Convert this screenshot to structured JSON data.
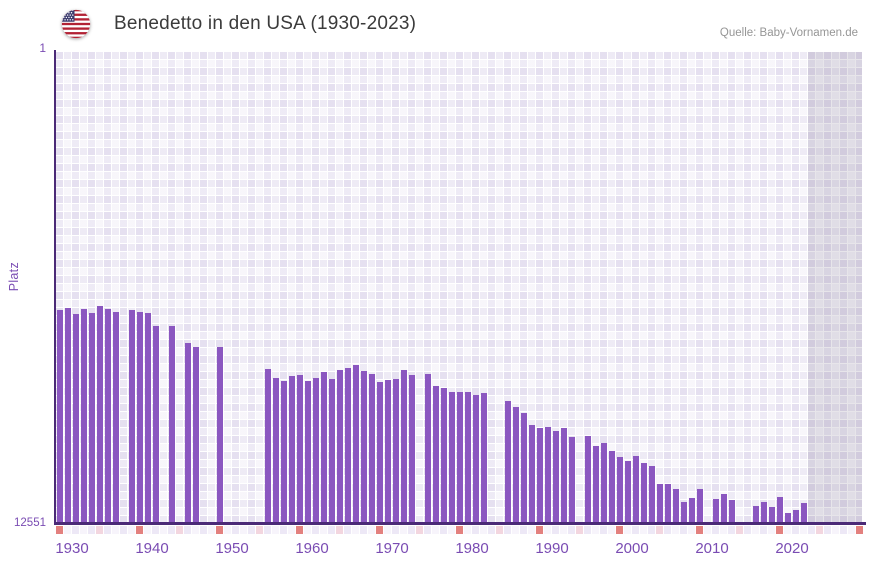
{
  "header": {
    "flag_icon": "us-flag-icon",
    "title": "Benedetto in den USA (1930-2023)",
    "source": "Quelle: Baby-Vornamen.de"
  },
  "y_axis": {
    "title": "Platz",
    "top_label": "1",
    "bottom_label": "12551"
  },
  "x_axis": {
    "tick_labels": [
      "1930",
      "1940",
      "1950",
      "1960",
      "1970",
      "1980",
      "1990",
      "2000",
      "2010",
      "2020"
    ]
  },
  "colors": {
    "bar": "#8b57c0",
    "axis_line": "#4b2a77",
    "tick_text": "#7a4cb3",
    "title_text": "#3b3b3b",
    "source_text": "#969696",
    "decade_marker": "#e3807e",
    "half_decade_marker": "#f3d6df",
    "future_band": "rgba(104,96,126,0.16)"
  },
  "chart_data": {
    "type": "bar",
    "title": "Benedetto in den USA (1930-2023)",
    "xlabel": "",
    "ylabel": "Platz",
    "y_axis_inverted": true,
    "ylim": [
      1,
      12551
    ],
    "x_range_drawn": [
      1930,
      2030
    ],
    "no_data_band": [
      2024,
      2030
    ],
    "grid": true,
    "legend": false,
    "years": [
      1930,
      1931,
      1932,
      1933,
      1934,
      1935,
      1936,
      1937,
      1938,
      1939,
      1940,
      1941,
      1942,
      1943,
      1944,
      1945,
      1946,
      1947,
      1948,
      1949,
      1950,
      1951,
      1952,
      1953,
      1954,
      1955,
      1956,
      1957,
      1958,
      1959,
      1960,
      1961,
      1962,
      1963,
      1964,
      1965,
      1966,
      1967,
      1968,
      1969,
      1970,
      1971,
      1972,
      1973,
      1974,
      1975,
      1976,
      1977,
      1978,
      1979,
      1980,
      1981,
      1982,
      1983,
      1984,
      1985,
      1986,
      1987,
      1988,
      1989,
      1990,
      1991,
      1992,
      1993,
      1994,
      1995,
      1996,
      1997,
      1998,
      1999,
      2000,
      2001,
      2002,
      2003,
      2004,
      2005,
      2006,
      2007,
      2008,
      2009,
      2010,
      2011,
      2012,
      2013,
      2014,
      2015,
      2016,
      2017,
      2018,
      2019,
      2020,
      2021,
      2022,
      2023
    ],
    "ranks": [
      6870,
      6830,
      6990,
      6850,
      6950,
      6770,
      6860,
      6920,
      null,
      6870,
      6930,
      6950,
      7300,
      null,
      7310,
      null,
      7750,
      7850,
      null,
      null,
      7860,
      null,
      null,
      null,
      null,
      null,
      8450,
      8690,
      8770,
      8640,
      8600,
      8760,
      8680,
      8530,
      8710,
      8470,
      8430,
      8330,
      8490,
      8580,
      8790,
      8750,
      8700,
      8470,
      8610,
      null,
      8580,
      8910,
      8960,
      9050,
      9050,
      9050,
      9140,
      9090,
      null,
      null,
      9290,
      9450,
      9610,
      9950,
      10030,
      10000,
      10110,
      10030,
      10270,
      null,
      10240,
      10490,
      10430,
      10620,
      10790,
      10890,
      10770,
      10940,
      11030,
      11500,
      11520,
      11650,
      12000,
      11890,
      11650,
      null,
      11920,
      11780,
      11940,
      null,
      null,
      12100,
      11980,
      12120,
      11870,
      12280,
      12200,
      12030
    ]
  }
}
